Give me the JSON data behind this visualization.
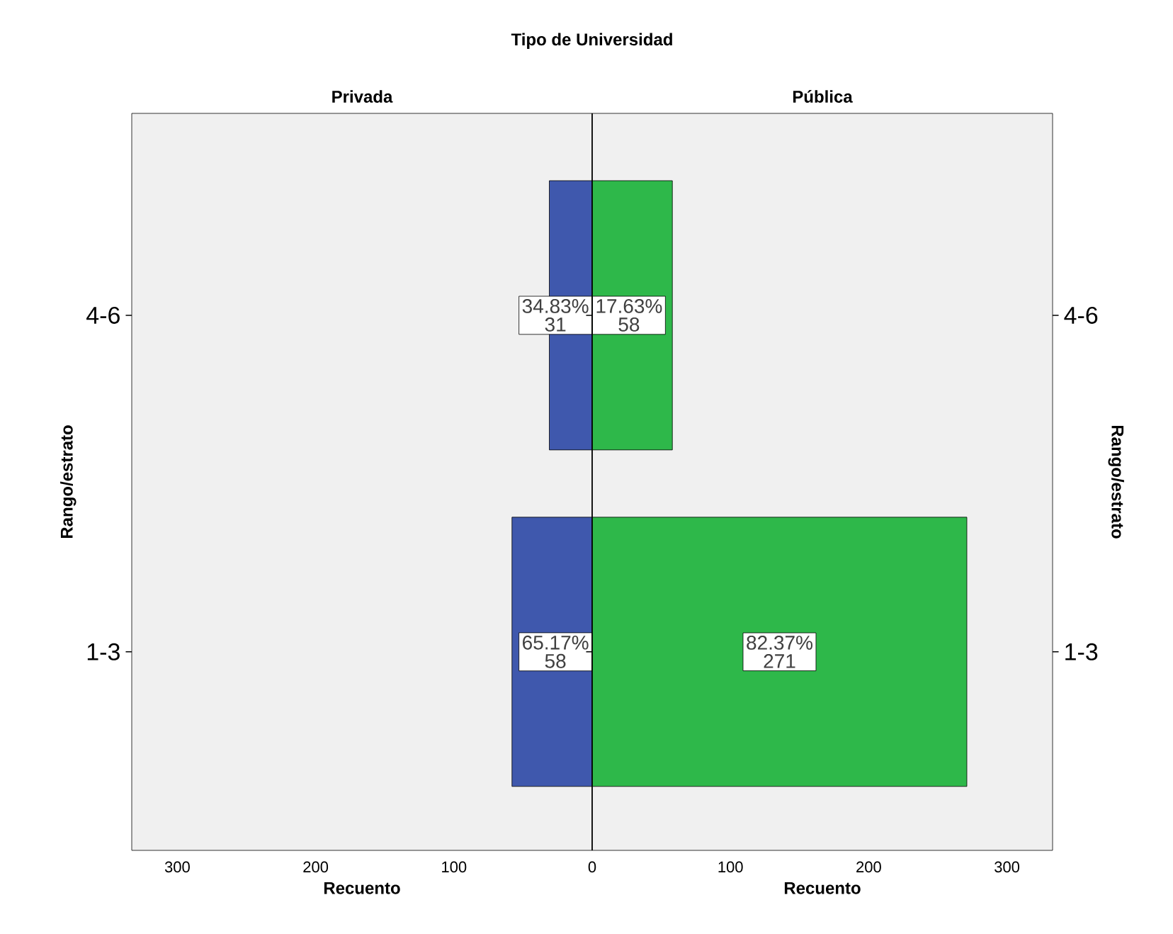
{
  "chart_data": [
    {
      "type": "bar",
      "orientation": "horizontal",
      "title": "Tipo de Universidad",
      "subtitle": "Privada",
      "xlabel": "Recuento",
      "ylabel": "Rango/estrato",
      "categories": [
        "4-6",
        "1-3"
      ],
      "values": [
        31,
        58
      ],
      "color": "#3f58ad",
      "data_labels": true,
      "annotations": [
        "34.83%",
        "65.17%"
      ],
      "xlim": [
        333,
        0
      ],
      "xticks": [
        300,
        200,
        100
      ],
      "grid": false
    },
    {
      "type": "bar",
      "orientation": "horizontal",
      "subtitle": "Pública",
      "xlabel": "Recuento",
      "ylabel": "Rango/estrato",
      "categories": [
        "4-6",
        "1-3"
      ],
      "values": [
        58,
        271
      ],
      "color": "#2eb84a",
      "data_labels": true,
      "annotations": [
        "17.63%",
        "82.37%"
      ],
      "xlim": [
        0,
        333
      ],
      "xticks": [
        0,
        100,
        200,
        300
      ],
      "grid": false
    }
  ]
}
